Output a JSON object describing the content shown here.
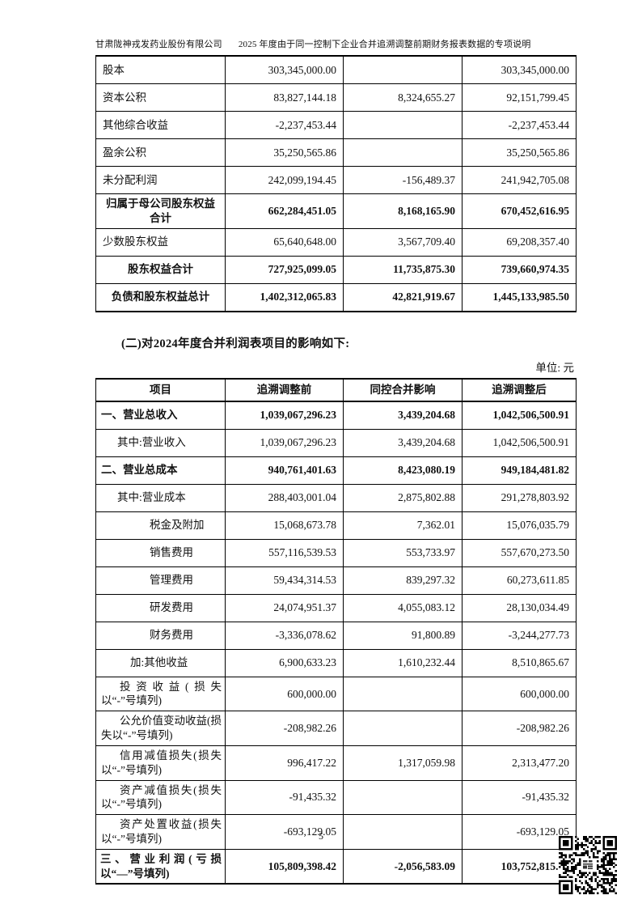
{
  "header": {
    "company": "甘肃陇神戎发药业股份有限公司",
    "doc_title": "2025 年度由于同一控制下企业合并追溯调整前期财务报表数据的专项说明"
  },
  "section2": {
    "heading": "(二)对2024年度合并利润表项目的影响如下:",
    "unit_label": "单位: 元"
  },
  "equity_table": {
    "rows": [
      {
        "label": "股本",
        "before": "303,345,000.00",
        "impact": "",
        "after": "303,345,000.00",
        "style": "plain"
      },
      {
        "label": "资本公积",
        "before": "83,827,144.18",
        "impact": "8,324,655.27",
        "after": "92,151,799.45",
        "style": "plain"
      },
      {
        "label": "其他综合收益",
        "before": "-2,237,453.44",
        "impact": "",
        "after": "-2,237,453.44",
        "style": "plain"
      },
      {
        "label": "盈余公积",
        "before": "35,250,565.86",
        "impact": "",
        "after": "35,250,565.86",
        "style": "plain"
      },
      {
        "label": "未分配利润",
        "before": "242,099,194.45",
        "impact": "-156,489.37",
        "after": "241,942,705.08",
        "style": "plain"
      },
      {
        "label": "归属于母公司股东权益合计",
        "before": "662,284,451.05",
        "impact": "8,168,165.90",
        "after": "670,452,616.95",
        "style": "total"
      },
      {
        "label": "少数股东权益",
        "before": "65,640,648.00",
        "impact": "3,567,709.40",
        "after": "69,208,357.40",
        "style": "plain"
      },
      {
        "label": "股东权益合计",
        "before": "727,925,099.05",
        "impact": "11,735,875.30",
        "after": "739,660,974.35",
        "style": "total"
      },
      {
        "label": "负债和股东权益总计",
        "before": "1,402,312,065.83",
        "impact": "42,821,919.67",
        "after": "1,445,133,985.50",
        "style": "total"
      }
    ]
  },
  "income_table": {
    "headers": [
      "项目",
      "追溯调整前",
      "同控合并影响",
      "追溯调整后"
    ],
    "rows": [
      {
        "label": "一、营业总收入",
        "before": "1,039,067,296.23",
        "impact": "3,439,204.68",
        "after": "1,042,506,500.91",
        "style": "head"
      },
      {
        "label": "其中:营业收入",
        "before": "1,039,067,296.23",
        "impact": "3,439,204.68",
        "after": "1,042,506,500.91",
        "style": "ind1"
      },
      {
        "label": "二、营业总成本",
        "before": "940,761,401.63",
        "impact": "8,423,080.19",
        "after": "949,184,481.82",
        "style": "head"
      },
      {
        "label": "其中:营业成本",
        "before": "288,403,001.04",
        "impact": "2,875,802.88",
        "after": "291,278,803.92",
        "style": "ind1"
      },
      {
        "label": "税金及附加",
        "before": "15,068,673.78",
        "impact": "7,362.01",
        "after": "15,076,035.79",
        "style": "ind3"
      },
      {
        "label": "销售费用",
        "before": "557,116,539.53",
        "impact": "553,733.97",
        "after": "557,670,273.50",
        "style": "ind3"
      },
      {
        "label": "管理费用",
        "before": "59,434,314.53",
        "impact": "839,297.32",
        "after": "60,273,611.85",
        "style": "ind3"
      },
      {
        "label": "研发费用",
        "before": "24,074,951.37",
        "impact": "4,055,083.12",
        "after": "28,130,034.49",
        "style": "ind3"
      },
      {
        "label": "财务费用",
        "before": "-3,336,078.62",
        "impact": "91,800.89",
        "after": "-3,244,277.73",
        "style": "ind3"
      },
      {
        "label": "加:其他收益",
        "before": "6,900,633.23",
        "impact": "1,610,232.44",
        "after": "8,510,865.67",
        "style": "ind2"
      },
      {
        "label": "投资收益(损失以“-”号填列)",
        "before": "600,000.00",
        "impact": "",
        "after": "600,000.00",
        "style": "wrap"
      },
      {
        "label": "公允价值变动收益(损失以“-”号填列)",
        "before": "-208,982.26",
        "impact": "",
        "after": "-208,982.26",
        "style": "wrap"
      },
      {
        "label": "信用减值损失(损失以“-”号填列)",
        "before": "996,417.22",
        "impact": "1,317,059.98",
        "after": "2,313,477.20",
        "style": "wrap"
      },
      {
        "label": "资产减值损失(损失以“-”号填列)",
        "before": "-91,435.32",
        "impact": "",
        "after": "-91,435.32",
        "style": "wrap"
      },
      {
        "label": "资产处置收益(损失以“-”号填列)",
        "before": "-693,129.05",
        "impact": "",
        "after": "-693,129.05",
        "style": "wrap"
      },
      {
        "label": "三、营业利润(亏损以“—”号填列)",
        "before": "105,809,398.42",
        "impact": "-2,056,583.09",
        "after": "103,752,815.33",
        "style": "headwrap"
      }
    ]
  },
  "footer": {
    "page_number": "5",
    "qr_icon": "qr-code"
  }
}
